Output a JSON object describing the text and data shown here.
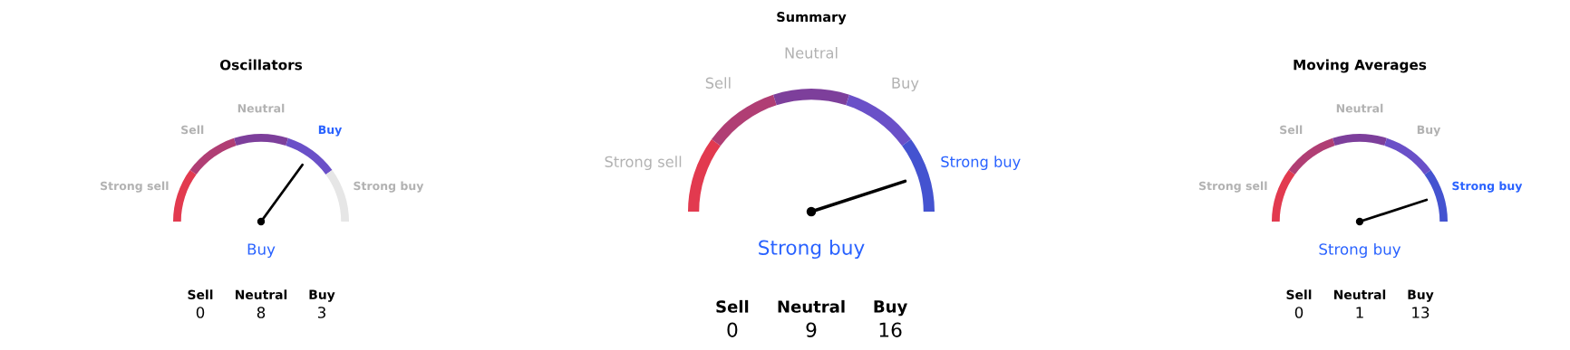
{
  "chart_data": [
    {
      "type": "donut",
      "title": "Summary",
      "categories": [
        "Strong sell",
        "Sell",
        "Neutral",
        "Buy",
        "Strong buy"
      ],
      "values": [
        20,
        20,
        20,
        20,
        20
      ],
      "colors": [
        "#e23a4f",
        "#b03e74",
        "#7d3f9b",
        "#6a50c8",
        "#4453d0"
      ],
      "needle": "Strong buy",
      "annotations": [
        "Strong buy",
        "Sell",
        "Neutral",
        "Buy",
        "0",
        "9",
        "16"
      ]
    },
    {
      "type": "donut",
      "title": "Oscillators",
      "categories": [
        "Strong sell",
        "Sell",
        "Neutral",
        "Buy",
        "Strong buy"
      ],
      "values": [
        20,
        20,
        20,
        20,
        20
      ],
      "colors": [
        "#e23a4f",
        "#b03e74",
        "#7d3f9b",
        "#6a50c8",
        "#e6e6e6"
      ],
      "needle": "Buy",
      "annotations": [
        "Buy",
        "Sell",
        "Neutral",
        "Buy",
        "0",
        "8",
        "3"
      ]
    },
    {
      "type": "donut",
      "title": "Moving Averages",
      "categories": [
        "Strong sell",
        "Sell",
        "Neutral",
        "Buy",
        "Strong buy"
      ],
      "values": [
        20,
        20,
        20,
        20,
        20
      ],
      "colors": [
        "#e23a4f",
        "#b03e74",
        "#7d3f9b",
        "#6a50c8",
        "#4453d0"
      ],
      "needle": "Strong buy",
      "annotations": [
        "Strong buy",
        "Sell",
        "Neutral",
        "Buy",
        "0",
        "1",
        "13"
      ]
    }
  ]
}
